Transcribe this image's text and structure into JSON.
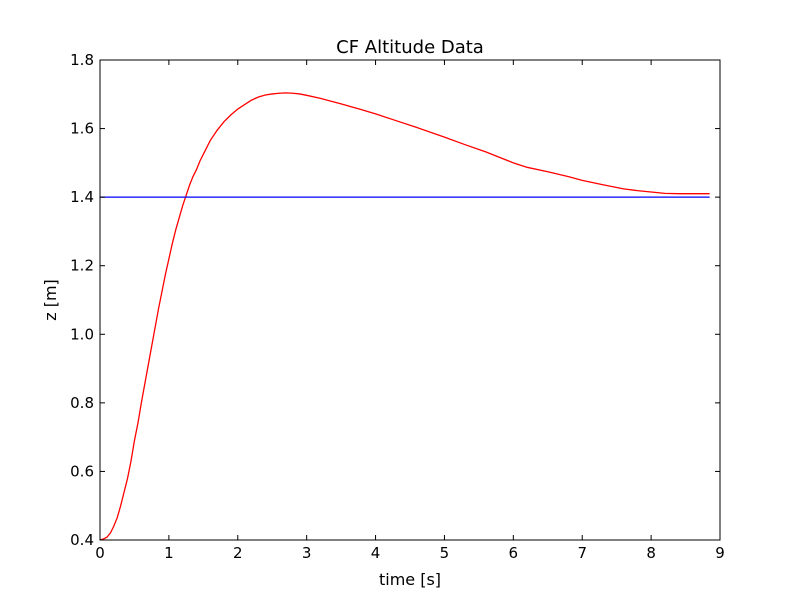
{
  "chart_data": {
    "type": "line",
    "title": "CF Altitude Data",
    "xlabel": "time [s]",
    "ylabel": "z [m]",
    "xlim": [
      0,
      9
    ],
    "ylim": [
      0.4,
      1.8
    ],
    "xticks": [
      0,
      1,
      2,
      3,
      4,
      5,
      6,
      7,
      8,
      9
    ],
    "yticks": [
      0.4,
      0.6,
      0.8,
      1.0,
      1.2,
      1.4,
      1.6,
      1.8
    ],
    "xtick_labels": [
      "0",
      "1",
      "2",
      "3",
      "4",
      "5",
      "6",
      "7",
      "8",
      "9"
    ],
    "ytick_labels": [
      "0.4",
      "0.6",
      "0.8",
      "1.0",
      "1.2",
      "1.4",
      "1.6",
      "1.8"
    ],
    "grid": false,
    "series": [
      {
        "color": "#ff0000",
        "x": [
          0.0,
          0.05,
          0.1,
          0.15,
          0.2,
          0.25,
          0.3,
          0.35,
          0.4,
          0.45,
          0.5,
          0.55,
          0.6,
          0.65,
          0.7,
          0.75,
          0.8,
          0.85,
          0.9,
          0.95,
          1.0,
          1.05,
          1.1,
          1.15,
          1.2,
          1.25,
          1.3,
          1.35,
          1.4,
          1.45,
          1.5,
          1.6,
          1.7,
          1.8,
          1.9,
          2.0,
          2.1,
          2.2,
          2.3,
          2.4,
          2.5,
          2.6,
          2.7,
          2.8,
          2.9,
          3.0,
          3.2,
          3.5,
          3.8,
          4.0,
          4.3,
          4.6,
          5.0,
          5.3,
          5.6,
          5.8,
          6.0,
          6.2,
          6.5,
          6.8,
          7.0,
          7.3,
          7.6,
          7.8,
          8.0,
          8.2,
          8.4,
          8.6,
          8.85
        ],
        "y": [
          0.4,
          0.403,
          0.408,
          0.42,
          0.44,
          0.465,
          0.5,
          0.54,
          0.58,
          0.63,
          0.69,
          0.74,
          0.8,
          0.855,
          0.91,
          0.965,
          1.02,
          1.075,
          1.125,
          1.175,
          1.22,
          1.265,
          1.305,
          1.34,
          1.375,
          1.405,
          1.435,
          1.46,
          1.48,
          1.505,
          1.525,
          1.565,
          1.595,
          1.62,
          1.64,
          1.657,
          1.67,
          1.683,
          1.692,
          1.698,
          1.701,
          1.703,
          1.704,
          1.703,
          1.701,
          1.697,
          1.688,
          1.672,
          1.655,
          1.643,
          1.623,
          1.603,
          1.575,
          1.553,
          1.532,
          1.516,
          1.5,
          1.487,
          1.474,
          1.46,
          1.449,
          1.436,
          1.424,
          1.419,
          1.415,
          1.411,
          1.41,
          1.41,
          1.41
        ]
      },
      {
        "color": "#0000ff",
        "x": [
          0.0,
          8.85
        ],
        "y": [
          1.4,
          1.4
        ]
      }
    ]
  }
}
